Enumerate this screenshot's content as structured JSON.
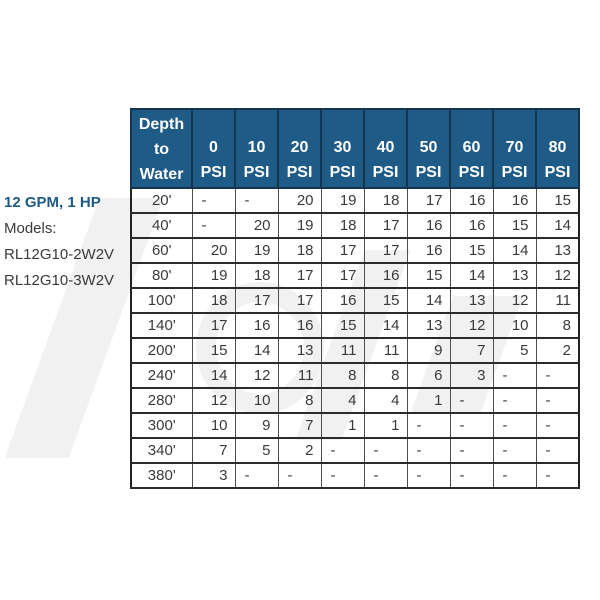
{
  "side_label": {
    "title": "12 GPM, 1 HP",
    "models_label": "Models:",
    "models": [
      "RL12G10-2W2V",
      "RL12G10-3W2V"
    ]
  },
  "table": {
    "corner_header": "Depth to Water",
    "psi_unit": "PSI",
    "psi_values": [
      "0",
      "10",
      "20",
      "30",
      "40",
      "50",
      "60",
      "70",
      "80"
    ],
    "rows": [
      {
        "depth": "20'",
        "values": [
          "-",
          "-",
          "20",
          "19",
          "18",
          "17",
          "16",
          "16",
          "15"
        ]
      },
      {
        "depth": "40'",
        "values": [
          "-",
          "20",
          "19",
          "18",
          "17",
          "16",
          "16",
          "15",
          "14"
        ]
      },
      {
        "depth": "60'",
        "values": [
          "20",
          "19",
          "18",
          "17",
          "17",
          "16",
          "15",
          "14",
          "13"
        ]
      },
      {
        "depth": "80'",
        "values": [
          "19",
          "18",
          "17",
          "17",
          "16",
          "15",
          "14",
          "13",
          "12"
        ]
      },
      {
        "depth": "100'",
        "values": [
          "18",
          "17",
          "17",
          "16",
          "15",
          "14",
          "13",
          "12",
          "11"
        ]
      },
      {
        "depth": "140'",
        "values": [
          "17",
          "16",
          "16",
          "15",
          "14",
          "13",
          "12",
          "10",
          "8"
        ]
      },
      {
        "depth": "200'",
        "values": [
          "15",
          "14",
          "13",
          "11",
          "11",
          "9",
          "7",
          "5",
          "2"
        ]
      },
      {
        "depth": "240'",
        "values": [
          "14",
          "12",
          "11",
          "8",
          "8",
          "6",
          "3",
          "-",
          "-"
        ]
      },
      {
        "depth": "280'",
        "values": [
          "12",
          "10",
          "8",
          "4",
          "4",
          "1",
          "-",
          "-",
          "-"
        ]
      },
      {
        "depth": "300'",
        "values": [
          "10",
          "9",
          "7",
          "1",
          "1",
          "-",
          "-",
          "-",
          "-"
        ]
      },
      {
        "depth": "340'",
        "values": [
          "7",
          "5",
          "2",
          "-",
          "-",
          "-",
          "-",
          "-",
          "-"
        ]
      },
      {
        "depth": "380'",
        "values": [
          "3",
          "-",
          "-",
          "-",
          "-",
          "-",
          "-",
          "-",
          "-"
        ]
      }
    ]
  },
  "colors": {
    "header_bg": "#1e5b87",
    "header_text": "#ffffff",
    "accent_text": "#1e5b87",
    "body_text": "#3a3a3a",
    "watermark": "#f1f1f1"
  }
}
